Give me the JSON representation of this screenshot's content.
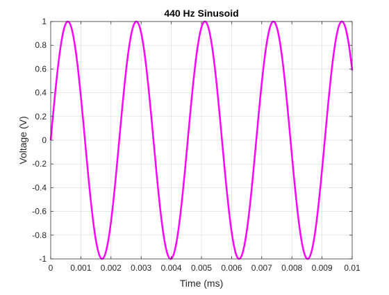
{
  "chart_data": {
    "type": "line",
    "title": "440 Hz Sinusoid",
    "xlabel": "Time (ms)",
    "ylabel": "Voltage (V)",
    "xlim": [
      0,
      0.01
    ],
    "ylim": [
      -1,
      1
    ],
    "grid": true,
    "x_ticks": [
      "0",
      "0.001",
      "0.002",
      "0.003",
      "0.004",
      "0.005",
      "0.006",
      "0.007",
      "0.008",
      "0.009",
      "0.01"
    ],
    "y_ticks": [
      "1",
      "0.8",
      "0.6",
      "0.4",
      "0.2",
      "0",
      "-0.2",
      "-0.4",
      "-0.6",
      "-0.8",
      "-1"
    ],
    "series": [
      {
        "color": "#ff00ff",
        "function": "sin(2*pi*440*t)",
        "frequency_hz": 440,
        "amplitude": 1,
        "x_range": [
          0,
          0.01
        ]
      }
    ]
  }
}
